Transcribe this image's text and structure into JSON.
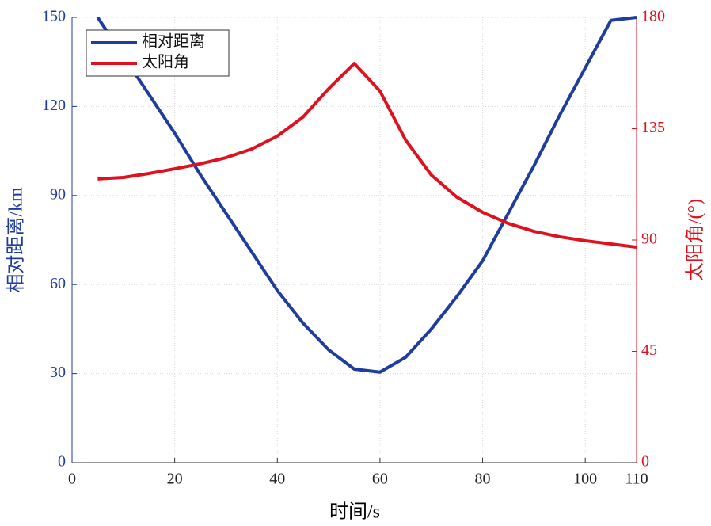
{
  "chart_data": {
    "type": "line",
    "x_label": "时间/s",
    "y_label": "相对距离/km",
    "y2_label": "太阳角/(°)",
    "x": [
      5,
      10,
      15,
      20,
      25,
      30,
      35,
      40,
      45,
      50,
      55,
      60,
      65,
      70,
      75,
      80,
      85,
      90,
      95,
      100,
      105,
      110
    ],
    "series": [
      {
        "name": "相对距离",
        "color": "#1f3d9e",
        "axis": "y",
        "values": [
          150,
          137,
          124,
          111,
          97,
          84,
          71,
          58,
          47,
          38,
          31.5,
          30.5,
          35.5,
          45,
          56,
          68,
          84,
          100,
          117,
          133,
          149,
          150
        ]
      },
      {
        "name": "太阳角",
        "color": "#e0101e",
        "axis": "y2",
        "values": [
          114.7,
          115.3,
          116.9,
          118.8,
          120.8,
          123.3,
          126.8,
          132,
          139.7,
          151.2,
          161.4,
          150.2,
          130.4,
          116.3,
          107.3,
          101.2,
          96.7,
          93.5,
          91.3,
          89.7,
          88.4,
          87.1
        ]
      }
    ],
    "xlim": [
      0,
      110
    ],
    "xticks": [
      0,
      20,
      40,
      60,
      80,
      100,
      110
    ],
    "ylim": [
      0,
      150
    ],
    "yticks": [
      0,
      30,
      60,
      90,
      120,
      150
    ],
    "y2lim": [
      0,
      180
    ],
    "y2ticks": [
      0,
      45,
      90,
      135,
      180
    ],
    "grid": true,
    "legend": "upper left"
  }
}
